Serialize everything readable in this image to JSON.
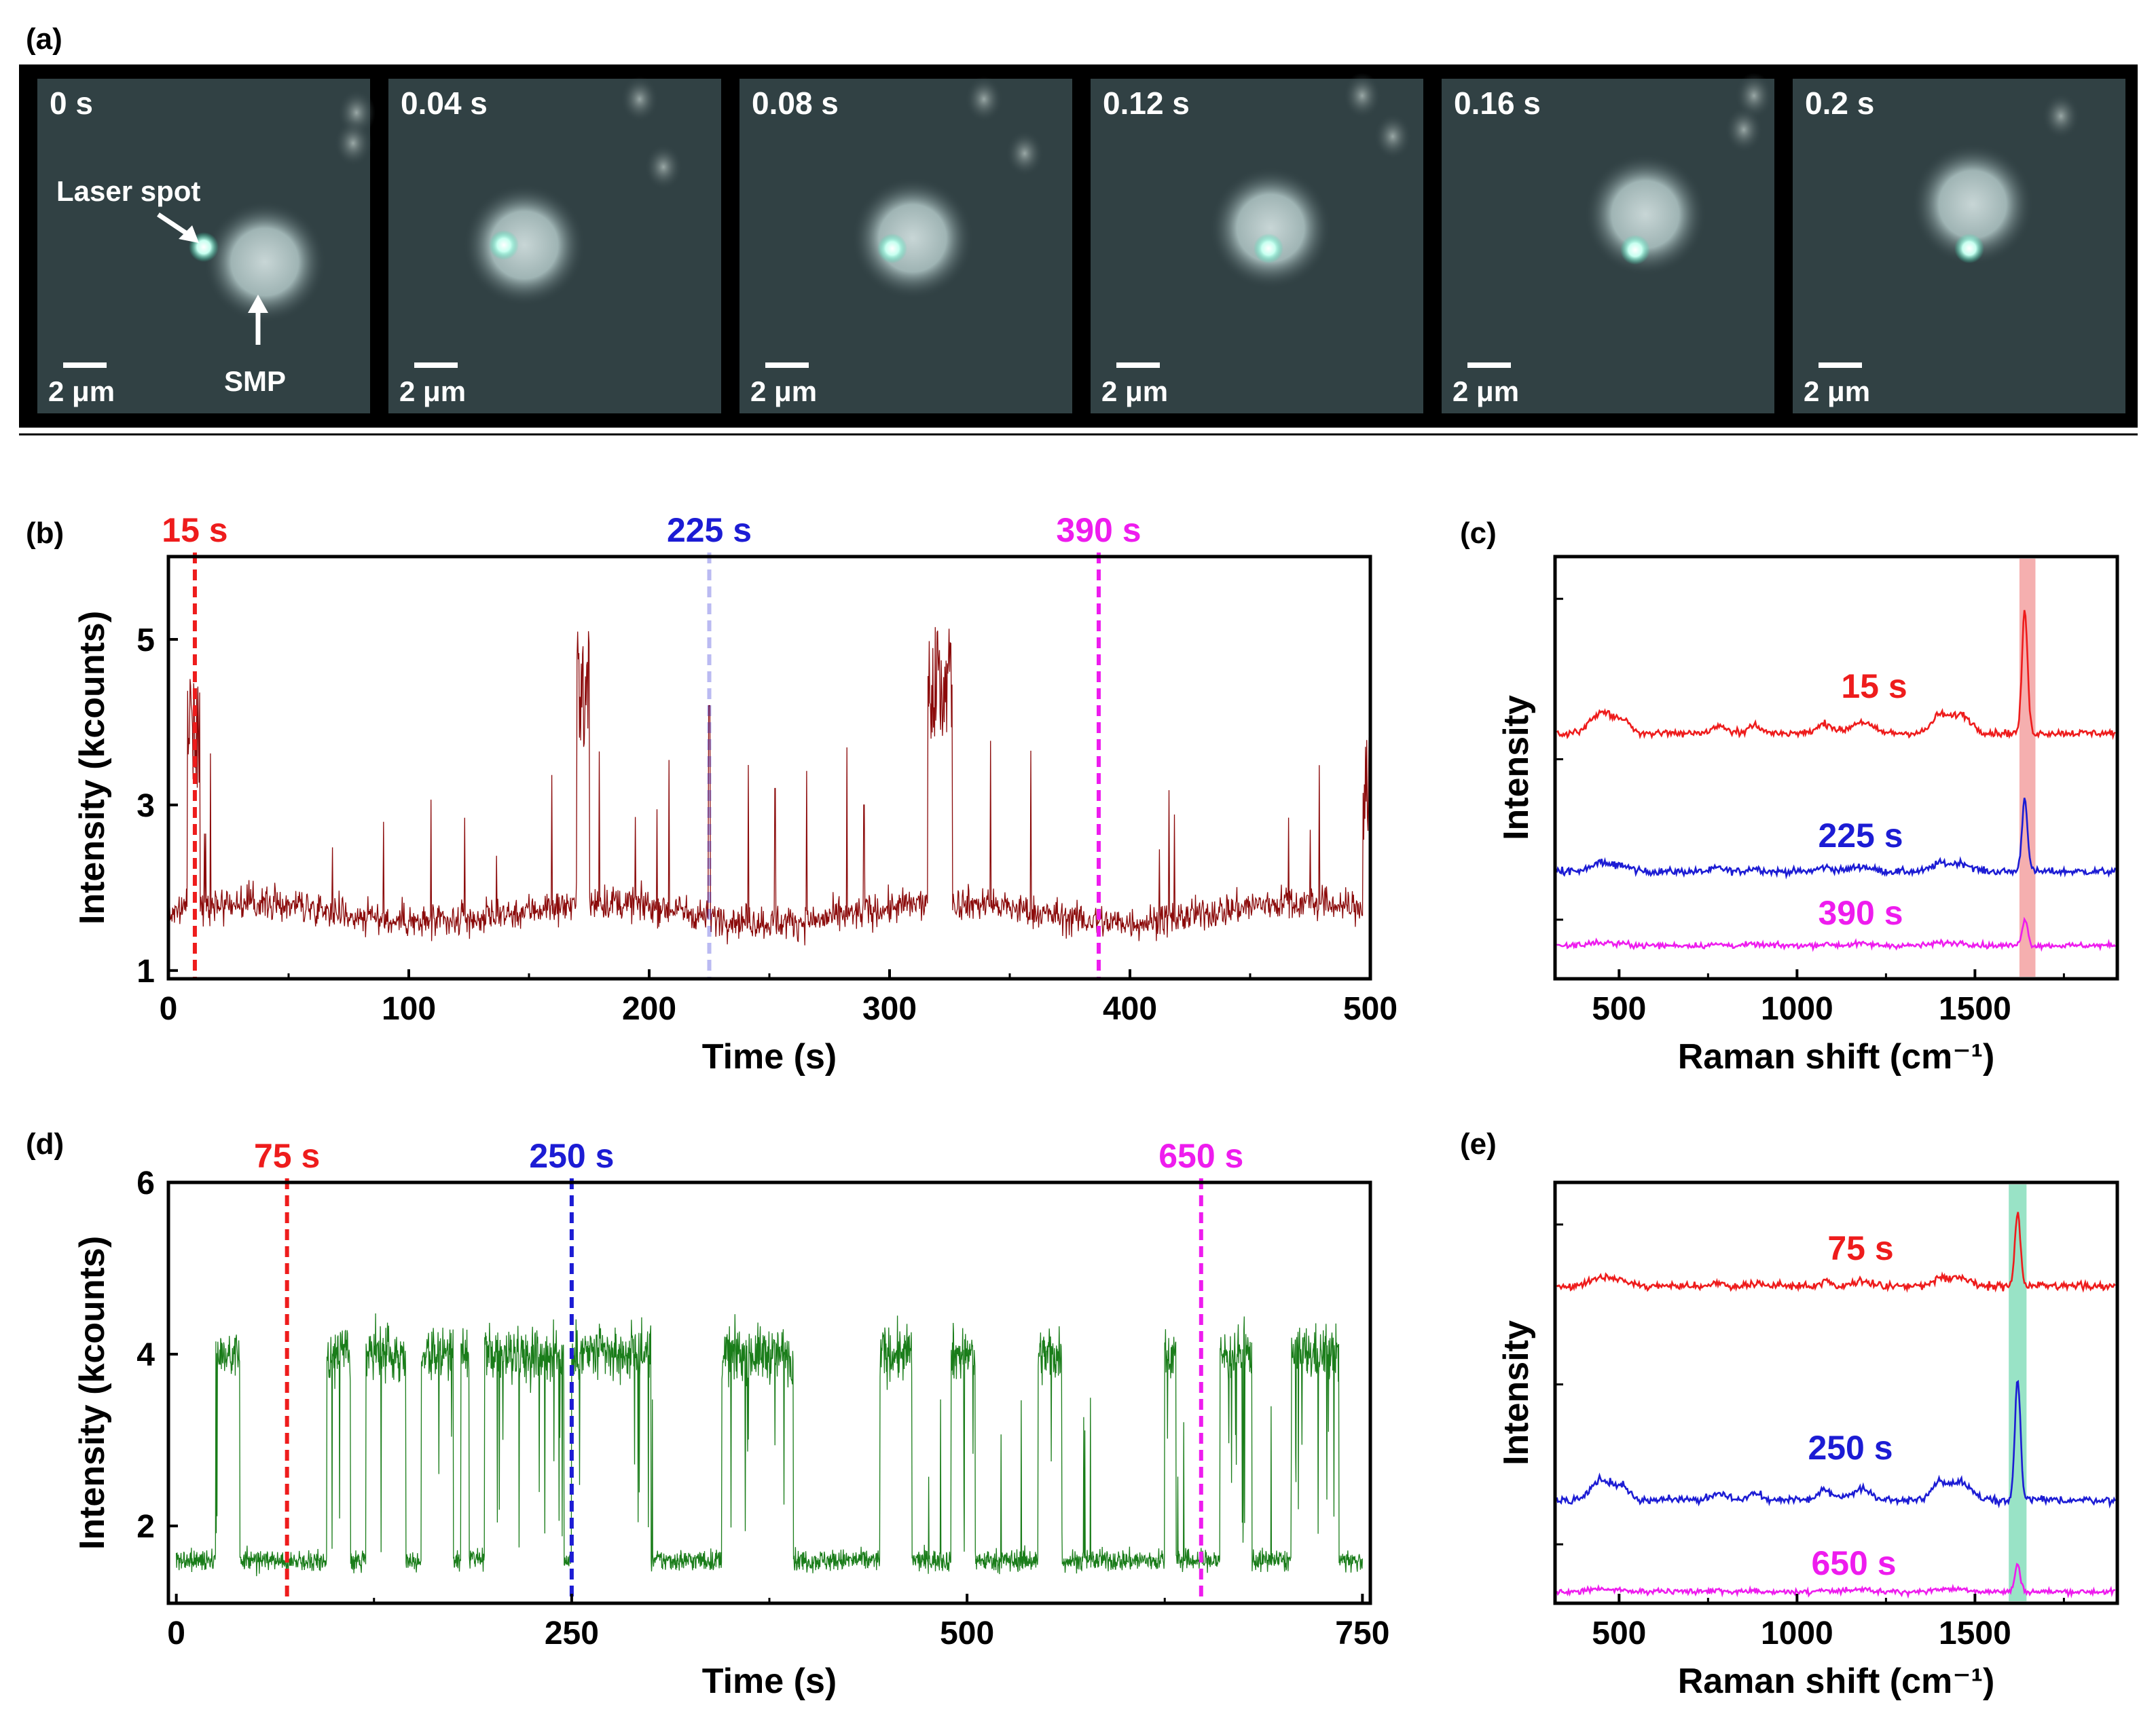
{
  "panels": {
    "a": "(a)",
    "b": "(b)",
    "c": "(c)",
    "d": "(d)",
    "e": "(e)"
  },
  "colors": {
    "red": "#ee1c1c",
    "blue": "#1c1cd4",
    "magenta": "#ee1cee",
    "darkred": "#8b0a0a",
    "green": "#1a7d1a",
    "pink_band": "#f4a6a6",
    "green_band": "#8ee0c0",
    "frame_bg": "#314144"
  },
  "strip": {
    "frames": [
      {
        "time": "0 s",
        "scale": "2 μm"
      },
      {
        "time": "0.04 s",
        "scale": "2 μm"
      },
      {
        "time": "0.08 s",
        "scale": "2 μm"
      },
      {
        "time": "0.12 s",
        "scale": "2 μm"
      },
      {
        "time": "0.16 s",
        "scale": "2 μm"
      },
      {
        "time": "0.2 s",
        "scale": "2 μm"
      }
    ],
    "laser_label": "Laser spot",
    "smp_label": "SMP"
  },
  "chart_data": [
    {
      "id": "b",
      "type": "line",
      "xlabel": "Time (s)",
      "ylabel": "Intensity (kcounts)",
      "xlim": [
        0,
        500
      ],
      "ylim": [
        0.9,
        6.0
      ],
      "xticks": [
        0,
        100,
        200,
        300,
        400,
        500
      ],
      "yticks": [
        1,
        3,
        5
      ],
      "baseline": 1.7,
      "bursts": [
        [
          8,
          13,
          4.6
        ],
        [
          170,
          175,
          5.1
        ],
        [
          316,
          326,
          5.2
        ],
        [
          497,
          500,
          3.9
        ]
      ],
      "markers": [
        {
          "t": 11,
          "label": "15 s",
          "color": "#ee1c1c"
        },
        {
          "t": 225,
          "label": "225 s",
          "color": "#1c1cd4"
        },
        {
          "t": 387,
          "label": "390 s",
          "color": "#ee1cee"
        }
      ]
    },
    {
      "id": "c",
      "type": "line",
      "xlabel": "Raman shift (cm⁻¹)",
      "ylabel": "Intensity",
      "xlim": [
        320,
        1900
      ],
      "xticks": [
        500,
        1000,
        1500
      ],
      "band": [
        1625,
        1670
      ],
      "series": [
        {
          "name": "15 s",
          "color": "#ee1c1c",
          "peak": 1640,
          "peak_height": 1.0
        },
        {
          "name": "225 s",
          "color": "#1c1cd4",
          "peak": 1640,
          "peak_height": 0.6
        },
        {
          "name": "390 s",
          "color": "#ee1cee",
          "peak": 1640,
          "peak_height": 0.22
        }
      ]
    },
    {
      "id": "d",
      "type": "line",
      "xlabel": "Time (s)",
      "ylabel": "Intensity (kcounts)",
      "xlim": [
        -5,
        755
      ],
      "ylim": [
        1.1,
        6.0
      ],
      "xticks": [
        0,
        250,
        500,
        750
      ],
      "yticks": [
        2,
        4,
        6
      ],
      "low_level": 1.6,
      "high_level": 4.0,
      "high_intervals": [
        [
          25,
          40
        ],
        [
          95,
          110
        ],
        [
          120,
          145
        ],
        [
          155,
          175
        ],
        [
          180,
          185
        ],
        [
          195,
          245
        ],
        [
          250,
          300
        ],
        [
          345,
          390
        ],
        [
          445,
          465
        ],
        [
          490,
          505
        ],
        [
          545,
          560
        ],
        [
          625,
          632
        ],
        [
          660,
          680
        ],
        [
          705,
          735
        ]
      ],
      "markers": [
        {
          "t": 70,
          "label": "75 s",
          "color": "#ee1c1c"
        },
        {
          "t": 250,
          "label": "250 s",
          "color": "#1c1cd4"
        },
        {
          "t": 648,
          "label": "650 s",
          "color": "#ee1cee"
        }
      ]
    },
    {
      "id": "e",
      "type": "line",
      "xlabel": "Raman shift (cm⁻¹)",
      "ylabel": "Intensity",
      "xlim": [
        320,
        1900
      ],
      "xticks": [
        500,
        1000,
        1500
      ],
      "band": [
        1595,
        1645
      ],
      "series": [
        {
          "name": "75 s",
          "color": "#ee1c1c",
          "peak": 1620,
          "peak_height": 0.6
        },
        {
          "name": "250 s",
          "color": "#1c1cd4",
          "peak": 1620,
          "peak_height": 1.0
        },
        {
          "name": "650 s",
          "color": "#ee1cee",
          "peak": 1620,
          "peak_height": 0.22
        }
      ]
    }
  ]
}
